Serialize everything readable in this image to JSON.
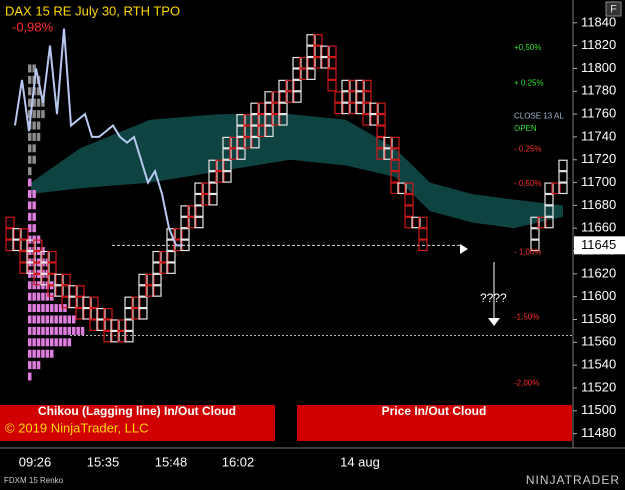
{
  "chart_data": {
    "type": "renko",
    "title": "DAX 15 RE July 30, RTH TPO",
    "change": "-0,98%",
    "ylim": [
      11470,
      11860
    ],
    "yticks": [
      11480,
      11500,
      11520,
      11540,
      11560,
      11580,
      11600,
      11620,
      11640,
      11660,
      11680,
      11700,
      11720,
      11740,
      11760,
      11780,
      11800,
      11820,
      11840
    ],
    "last_price": 11645,
    "x_labels": [
      "09:26",
      "15:35",
      "15:48",
      "16:02",
      "14 aug"
    ],
    "renko": {
      "start": 11670,
      "up_color": "#e6e6e6",
      "down_color": "#d01818",
      "closes": [
        11640,
        11660,
        11620,
        11650,
        11610,
        11640,
        11600,
        11620,
        11590,
        11610,
        11580,
        11600,
        11570,
        11590,
        11560,
        11580,
        11560,
        11600,
        11580,
        11620,
        11600,
        11640,
        11620,
        11660,
        11640,
        11680,
        11660,
        11700,
        11680,
        11720,
        11700,
        11740,
        11720,
        11760,
        11730,
        11770,
        11740,
        11780,
        11750,
        11790,
        11770,
        11810,
        11790,
        11830,
        11800,
        11820,
        11780,
        11760,
        11790,
        11760,
        11790,
        11750,
        11770,
        11720,
        11740,
        11690,
        11700,
        11660,
        11670,
        11640,
        null,
        null,
        null,
        null,
        null,
        null,
        null,
        null,
        null,
        null,
        null,
        null,
        null,
        null,
        null,
        11670,
        11660,
        11700,
        11690,
        11720
      ]
    },
    "chikou": {
      "color": "#b8c8f0",
      "values": [
        11750,
        11790,
        11745,
        11800,
        11770,
        11820,
        11760,
        11835,
        11750,
        11755,
        11760,
        11740,
        11740,
        11745,
        11750,
        11740,
        11735,
        11740,
        11720,
        11700,
        11710,
        11690,
        11660,
        11645,
        11645
      ]
    },
    "cloud": {
      "color": "#0f4a48",
      "x": [
        3,
        10,
        20,
        30,
        40,
        48,
        55,
        60,
        66,
        72,
        79
      ],
      "upper": [
        11700,
        11730,
        11755,
        11760,
        11760,
        11755,
        11730,
        11700,
        11690,
        11685,
        11680
      ],
      "lower": [
        11690,
        11695,
        11700,
        11710,
        11720,
        11715,
        11705,
        11675,
        11665,
        11660,
        11670
      ]
    },
    "profiles": [
      {
        "color": "#8c8c8c",
        "levels": [
          11800,
          11790,
          11780,
          11770,
          11760,
          11750,
          11740,
          11730,
          11720,
          11710
        ],
        "counts": [
          2,
          3,
          3,
          4,
          4,
          3,
          3,
          2,
          2,
          1
        ]
      },
      {
        "color": "#e07ee0",
        "levels": [
          11700,
          11690,
          11680,
          11670,
          11660,
          11650,
          11640,
          11630,
          11620,
          11610,
          11600,
          11590,
          11580,
          11570,
          11560,
          11550,
          11540,
          11530
        ],
        "counts": [
          1,
          2,
          2,
          2,
          2,
          3,
          4,
          5,
          5,
          6,
          6,
          9,
          11,
          13,
          10,
          6,
          3,
          1
        ]
      }
    ],
    "levels": [
      11645,
      11566
    ],
    "annotations": [
      {
        "label": "+0,50%",
        "value": 11818,
        "color": "#30e030"
      },
      {
        "label": "+ 0.25%",
        "value": 11787,
        "color": "#30e030"
      },
      {
        "label": "CLOSE 13 AL",
        "value": 11758,
        "color": "#a0b8d0"
      },
      {
        "label": "OPEN",
        "value": 11747,
        "color": "#30e030"
      },
      {
        "label": "- 0,25%",
        "value": 11729,
        "color": "#ff3030"
      },
      {
        "label": "- 0,50%",
        "value": 11699,
        "color": "#ff3030"
      },
      {
        "label": "- 1,00%",
        "value": 11639,
        "color": "#ff3030"
      },
      {
        "label": "-1,50%",
        "value": 11582,
        "color": "#ff3030"
      },
      {
        "label": "-2,00%",
        "value": 11524,
        "color": "#ff3030"
      }
    ],
    "question": "????",
    "banner_left": "Chikou (Lagging line) In/Out Cloud",
    "banner_right": "Price In/Out Cloud",
    "copyright": "© 2019 NinjaTrader, LLC",
    "instrument": "FDXM 15 Renko",
    "logo": "NINJATRADER",
    "button": "F"
  }
}
